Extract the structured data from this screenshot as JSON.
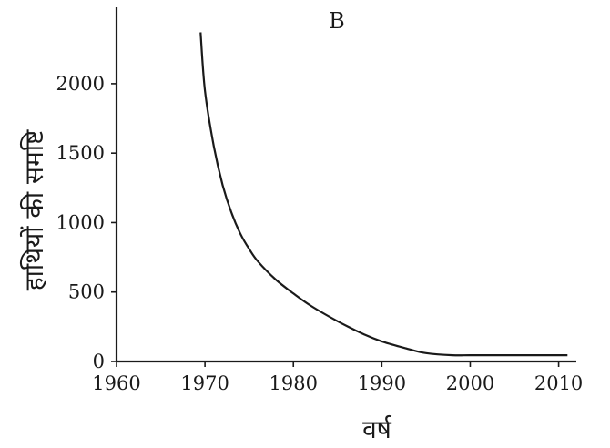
{
  "chart_data": {
    "type": "line",
    "title": "B",
    "xlabel": "वर्ष",
    "ylabel": "हाथियों की समष्टि",
    "xlim": [
      1960,
      2012
    ],
    "ylim": [
      0,
      2550
    ],
    "x_ticks": [
      1960,
      1970,
      1980,
      1990,
      2000,
      2010
    ],
    "y_ticks": [
      0,
      500,
      1000,
      1500,
      2000
    ],
    "grid": false,
    "series": [
      {
        "x": [
          1969.5,
          1970,
          1971,
          1972,
          1973,
          1974,
          1975,
          1976,
          1978,
          1980,
          1982,
          1985,
          1988,
          1990,
          1993,
          1995,
          1998,
          2000,
          2005,
          2011
        ],
        "values": [
          2370,
          1950,
          1550,
          1270,
          1070,
          920,
          810,
          720,
          590,
          490,
          400,
          290,
          195,
          145,
          90,
          60,
          45,
          45,
          45,
          45
        ]
      }
    ]
  }
}
